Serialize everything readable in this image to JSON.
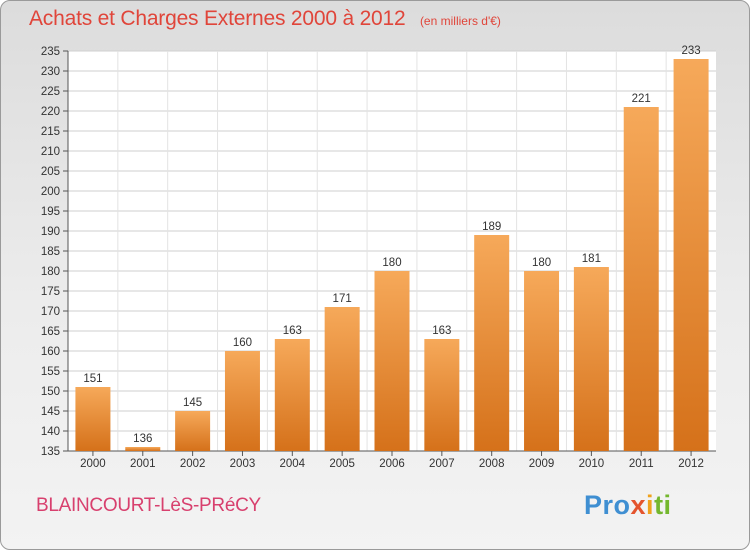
{
  "header": {
    "title": "Achats et Charges Externes 2000 à 2012",
    "unit": "(en milliers d'€)"
  },
  "footer": {
    "place": "BLAINCOURT-LèS-PRéCY",
    "logo": [
      "Pro",
      "x",
      "i",
      "ti"
    ]
  },
  "colors": {
    "title": "#e0453a",
    "bar_top": "#f6a95a",
    "bar_bottom": "#d5711a",
    "place": "#d8406e",
    "logo": [
      "#3f8fd2",
      "#e4542d",
      "#f0a21c",
      "#74b72e"
    ]
  },
  "chart_data": {
    "type": "bar",
    "title": "Achats et Charges Externes 2000 à 2012",
    "subtitle": "(en milliers d'€)",
    "xlabel": "",
    "ylabel": "",
    "categories": [
      "2000",
      "2001",
      "2002",
      "2003",
      "2004",
      "2005",
      "2006",
      "2007",
      "2008",
      "2009",
      "2010",
      "2011",
      "2012"
    ],
    "values": [
      151,
      136,
      145,
      160,
      163,
      171,
      180,
      163,
      189,
      180,
      181,
      221,
      233
    ],
    "ylim": [
      135,
      235
    ],
    "yticks": [
      135,
      140,
      145,
      150,
      155,
      160,
      165,
      170,
      175,
      180,
      185,
      190,
      195,
      200,
      205,
      210,
      215,
      220,
      225,
      230,
      235
    ],
    "grid": true,
    "legend": "none"
  }
}
